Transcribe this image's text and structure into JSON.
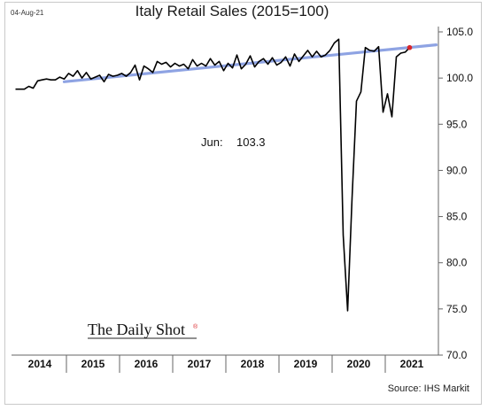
{
  "header": {
    "date": "04-Aug-21"
  },
  "annotation": {
    "label": "Jun:",
    "value": "103.3"
  },
  "branding": {
    "text": "The Daily Shot",
    "mark": "®"
  },
  "source": "Source: IHS Markit",
  "colors": {
    "series": "#000000",
    "trend": "#8ea3e3",
    "last_point": "#d9262b",
    "grid": "none"
  },
  "chart_data": {
    "type": "line",
    "title": "Italy Retail Sales (2015=100)",
    "xlabel": "",
    "ylabel": "",
    "y_axis_position": "right",
    "grid": false,
    "legend": "none",
    "ylim": [
      70.0,
      105.0
    ],
    "yticks": [
      "105.0",
      "100.0",
      "95.0",
      "90.0",
      "85.0",
      "80.0",
      "75.0",
      "70.0"
    ],
    "xlim": [
      "2014-01",
      "2021-12"
    ],
    "xticks": [
      "2014",
      "2015",
      "2016",
      "2017",
      "2018",
      "2019",
      "2020",
      "2021"
    ],
    "series": [
      {
        "style": "line",
        "x": [
          "2014-01",
          "2014-02",
          "2014-03",
          "2014-04",
          "2014-05",
          "2014-06",
          "2014-07",
          "2014-08",
          "2014-09",
          "2014-10",
          "2014-11",
          "2014-12",
          "2015-01",
          "2015-02",
          "2015-03",
          "2015-04",
          "2015-05",
          "2015-06",
          "2015-07",
          "2015-08",
          "2015-09",
          "2015-10",
          "2015-11",
          "2015-12",
          "2016-01",
          "2016-02",
          "2016-03",
          "2016-04",
          "2016-05",
          "2016-06",
          "2016-07",
          "2016-08",
          "2016-09",
          "2016-10",
          "2016-11",
          "2016-12",
          "2017-01",
          "2017-02",
          "2017-03",
          "2017-04",
          "2017-05",
          "2017-06",
          "2017-07",
          "2017-08",
          "2017-09",
          "2017-10",
          "2017-11",
          "2017-12",
          "2018-01",
          "2018-02",
          "2018-03",
          "2018-04",
          "2018-05",
          "2018-06",
          "2018-07",
          "2018-08",
          "2018-09",
          "2018-10",
          "2018-11",
          "2018-12",
          "2019-01",
          "2019-02",
          "2019-03",
          "2019-04",
          "2019-05",
          "2019-06",
          "2019-07",
          "2019-08",
          "2019-09",
          "2019-10",
          "2019-11",
          "2019-12",
          "2020-01",
          "2020-02",
          "2020-03",
          "2020-04",
          "2020-05",
          "2020-06",
          "2020-07",
          "2020-08",
          "2020-09",
          "2020-10",
          "2020-11",
          "2020-12",
          "2021-01",
          "2021-02",
          "2021-03",
          "2021-04",
          "2021-05",
          "2021-06"
        ],
        "values": [
          98.8,
          98.8,
          98.8,
          99.1,
          98.9,
          99.7,
          99.8,
          99.9,
          99.8,
          99.8,
          100.1,
          99.9,
          100.5,
          100.2,
          100.8,
          100.0,
          100.6,
          99.9,
          100.1,
          100.3,
          99.6,
          100.4,
          100.2,
          100.3,
          100.5,
          100.2,
          100.6,
          101.4,
          99.8,
          101.3,
          101.0,
          100.6,
          101.8,
          101.5,
          101.7,
          101.2,
          101.6,
          101.3,
          101.5,
          101.0,
          102.0,
          101.3,
          101.6,
          101.3,
          102.1,
          101.4,
          101.8,
          100.8,
          101.6,
          101.1,
          102.5,
          101.0,
          101.5,
          102.4,
          101.2,
          101.8,
          102.1,
          101.5,
          102.2,
          101.4,
          101.7,
          102.3,
          101.3,
          102.6,
          101.8,
          102.4,
          103.0,
          102.3,
          102.9,
          102.3,
          102.5,
          103.0,
          103.8,
          104.2,
          83.0,
          74.8,
          87.0,
          97.5,
          98.5,
          103.3,
          103.0,
          102.9,
          103.4,
          96.3,
          98.3,
          95.8,
          102.3,
          102.7,
          102.8,
          103.3
        ]
      },
      {
        "style": "trend",
        "x": [
          "2014-12",
          "2021-12"
        ],
        "values": [
          99.6,
          103.6
        ]
      }
    ]
  }
}
